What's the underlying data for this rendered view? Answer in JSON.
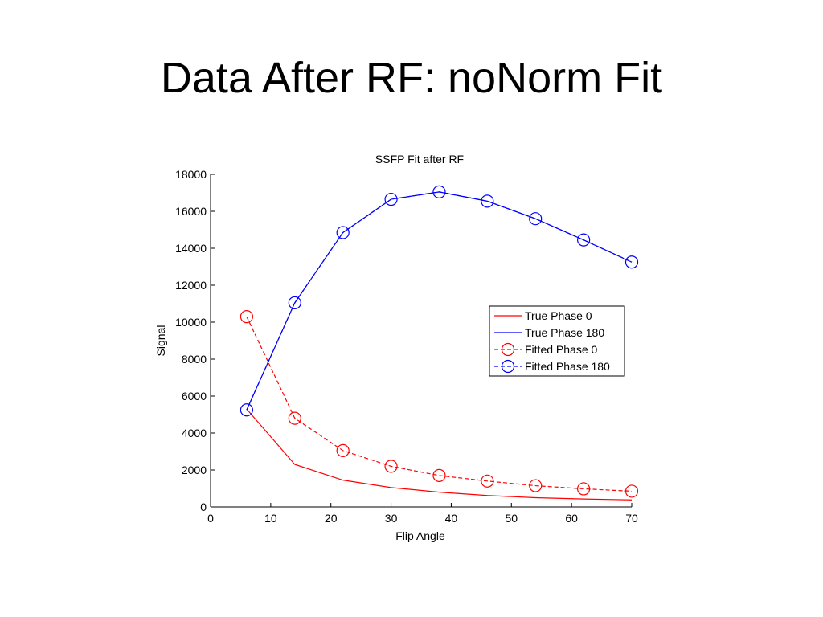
{
  "slide": {
    "title": "Data After RF: noNorm Fit"
  },
  "chart_data": {
    "type": "line",
    "title": "SSFP Fit after RF",
    "xlabel": "Flip Angle",
    "ylabel": "Signal",
    "xlim": [
      0,
      70
    ],
    "ylim": [
      0,
      18000
    ],
    "xticks": [
      0,
      10,
      20,
      30,
      40,
      50,
      60,
      70
    ],
    "yticks": [
      0,
      2000,
      4000,
      6000,
      8000,
      10000,
      12000,
      14000,
      16000,
      18000
    ],
    "grid": false,
    "legend_position": "right-center",
    "x": [
      6,
      14,
      22,
      30,
      38,
      46,
      54,
      62,
      70
    ],
    "series": [
      {
        "name": "True Phase 0",
        "color": "#ff0000",
        "line": "solid",
        "marker": "none",
        "values": [
          5300,
          2300,
          1450,
          1050,
          800,
          620,
          500,
          430,
          380
        ]
      },
      {
        "name": "True Phase 180",
        "color": "#0000ff",
        "line": "solid",
        "marker": "none",
        "values": [
          5250,
          11050,
          14850,
          16650,
          17050,
          16550,
          15600,
          14450,
          13250
        ]
      },
      {
        "name": "Fitted Phase 0",
        "color": "#ff0000",
        "line": "dashed",
        "marker": "circle",
        "values": [
          10300,
          4800,
          3050,
          2200,
          1700,
          1400,
          1150,
          980,
          850
        ]
      },
      {
        "name": "Fitted Phase 180",
        "color": "#0000ff",
        "line": "dashed",
        "marker": "circle",
        "values": [
          5250,
          11050,
          14850,
          16650,
          17050,
          16550,
          15600,
          14450,
          13250
        ]
      }
    ]
  }
}
